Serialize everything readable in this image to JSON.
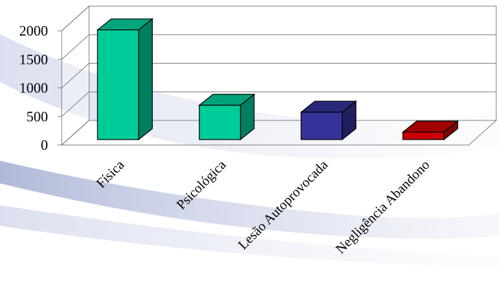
{
  "chart_data": {
    "type": "bar",
    "style": "3d-column",
    "categories": [
      "Física",
      "Psicológica",
      "Lesão Autoprovocada",
      "Negligência Abandono"
    ],
    "values": [
      1920,
      600,
      480,
      130
    ],
    "colors": [
      "#00CC99",
      "#00CC99",
      "#333399",
      "#CC0000"
    ],
    "ylim": [
      0,
      2000
    ],
    "yticks": [
      "0",
      "500",
      "1000",
      "1500",
      "2000"
    ],
    "grid": true,
    "legend": "none",
    "title": "",
    "xlabel": "",
    "ylabel": ""
  }
}
